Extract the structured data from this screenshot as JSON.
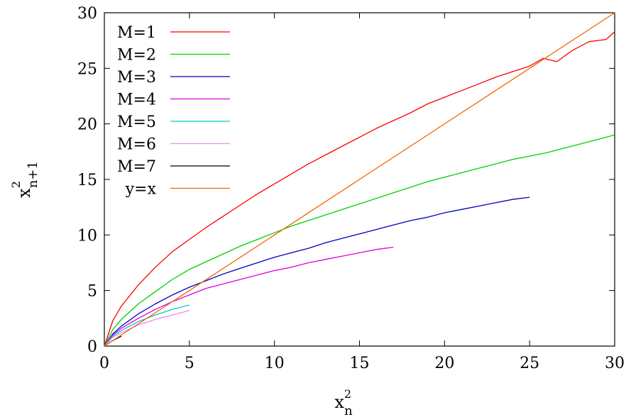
{
  "chart_data": {
    "type": "line",
    "title": "",
    "xlabel": {
      "base": "x",
      "sup": "2",
      "sub": "n"
    },
    "ylabel": {
      "base": "x",
      "sup": "2",
      "sub": "n+1"
    },
    "xlim": [
      0,
      30
    ],
    "ylim": [
      0,
      30
    ],
    "xticks": [
      "0",
      "5",
      "10",
      "15",
      "20",
      "25",
      "30"
    ],
    "yticks": [
      "0",
      "5",
      "10",
      "15",
      "20",
      "25",
      "30"
    ],
    "grid": false,
    "legend_position": "top-left",
    "series": [
      {
        "name": "M=1",
        "color": "#ff0000",
        "x": [
          0,
          0.5,
          1,
          2,
          3,
          4,
          5,
          6,
          7,
          8,
          9,
          10,
          11,
          12,
          13,
          14,
          15,
          16,
          17,
          18,
          19,
          20,
          21,
          22,
          23,
          24,
          25,
          25.8,
          26.6,
          27.5,
          28.5,
          29.5,
          30
        ],
        "y": [
          0,
          2.3,
          3.6,
          5.5,
          7.1,
          8.5,
          9.6,
          10.7,
          11.7,
          12.7,
          13.7,
          14.6,
          15.5,
          16.4,
          17.2,
          18.0,
          18.8,
          19.6,
          20.3,
          21.0,
          21.8,
          22.4,
          23.0,
          23.6,
          24.2,
          24.7,
          25.2,
          25.9,
          25.6,
          26.6,
          27.4,
          27.6,
          28.3
        ]
      },
      {
        "name": "M=2",
        "color": "#00d000",
        "x": [
          0,
          0.5,
          1,
          2,
          3,
          4,
          5,
          6,
          7,
          8,
          9,
          10,
          11,
          12,
          13,
          14,
          15,
          16,
          17,
          18,
          19,
          20,
          21,
          22,
          23,
          24,
          25,
          26,
          27,
          28,
          29,
          30
        ],
        "y": [
          0,
          1.5,
          2.4,
          3.8,
          4.9,
          6.0,
          6.9,
          7.6,
          8.3,
          9.0,
          9.6,
          10.2,
          10.8,
          11.3,
          11.8,
          12.3,
          12.8,
          13.3,
          13.8,
          14.3,
          14.8,
          15.2,
          15.6,
          16.0,
          16.4,
          16.8,
          17.1,
          17.4,
          17.8,
          18.2,
          18.6,
          19.0
        ]
      },
      {
        "name": "M=3",
        "color": "#0000c0",
        "x": [
          0,
          0.5,
          1,
          2,
          3,
          4,
          5,
          6,
          7,
          8,
          9,
          10,
          11,
          12,
          13,
          14,
          15,
          16,
          17,
          18,
          19,
          20,
          21,
          22,
          23,
          24,
          25
        ],
        "y": [
          0,
          1.1,
          1.8,
          2.9,
          3.8,
          4.6,
          5.3,
          5.9,
          6.5,
          7.0,
          7.5,
          8.0,
          8.4,
          8.8,
          9.3,
          9.7,
          10.1,
          10.5,
          10.9,
          11.3,
          11.6,
          12.0,
          12.3,
          12.6,
          12.9,
          13.2,
          13.4
        ]
      },
      {
        "name": "M=4",
        "color": "#dd00dd",
        "x": [
          0,
          0.5,
          1,
          2,
          3,
          4,
          5,
          6,
          7,
          8,
          9,
          10,
          11,
          12,
          13,
          14,
          15,
          16,
          17
        ],
        "y": [
          0,
          1.0,
          1.6,
          2.5,
          3.3,
          4.0,
          4.6,
          5.2,
          5.6,
          6.0,
          6.4,
          6.8,
          7.1,
          7.5,
          7.8,
          8.1,
          8.4,
          8.7,
          8.9
        ]
      },
      {
        "name": "M=5",
        "color": "#00cccc",
        "x": [
          0,
          0.5,
          1,
          2,
          3,
          4,
          5
        ],
        "y": [
          0,
          0.9,
          1.4,
          2.2,
          2.8,
          3.3,
          3.7
        ]
      },
      {
        "name": "M=6",
        "color": "#ee88ee",
        "x": [
          0,
          0.5,
          1,
          2,
          3,
          4,
          5
        ],
        "y": [
          0,
          0.8,
          1.2,
          1.9,
          2.4,
          2.8,
          3.2
        ]
      },
      {
        "name": "M=7",
        "color": "#000000",
        "x": [
          0,
          0.5,
          1
        ],
        "y": [
          0,
          0.5,
          0.9
        ]
      },
      {
        "name": "y=x",
        "color": "#ee6600",
        "x": [
          0,
          30
        ],
        "y": [
          0,
          30
        ]
      }
    ]
  }
}
